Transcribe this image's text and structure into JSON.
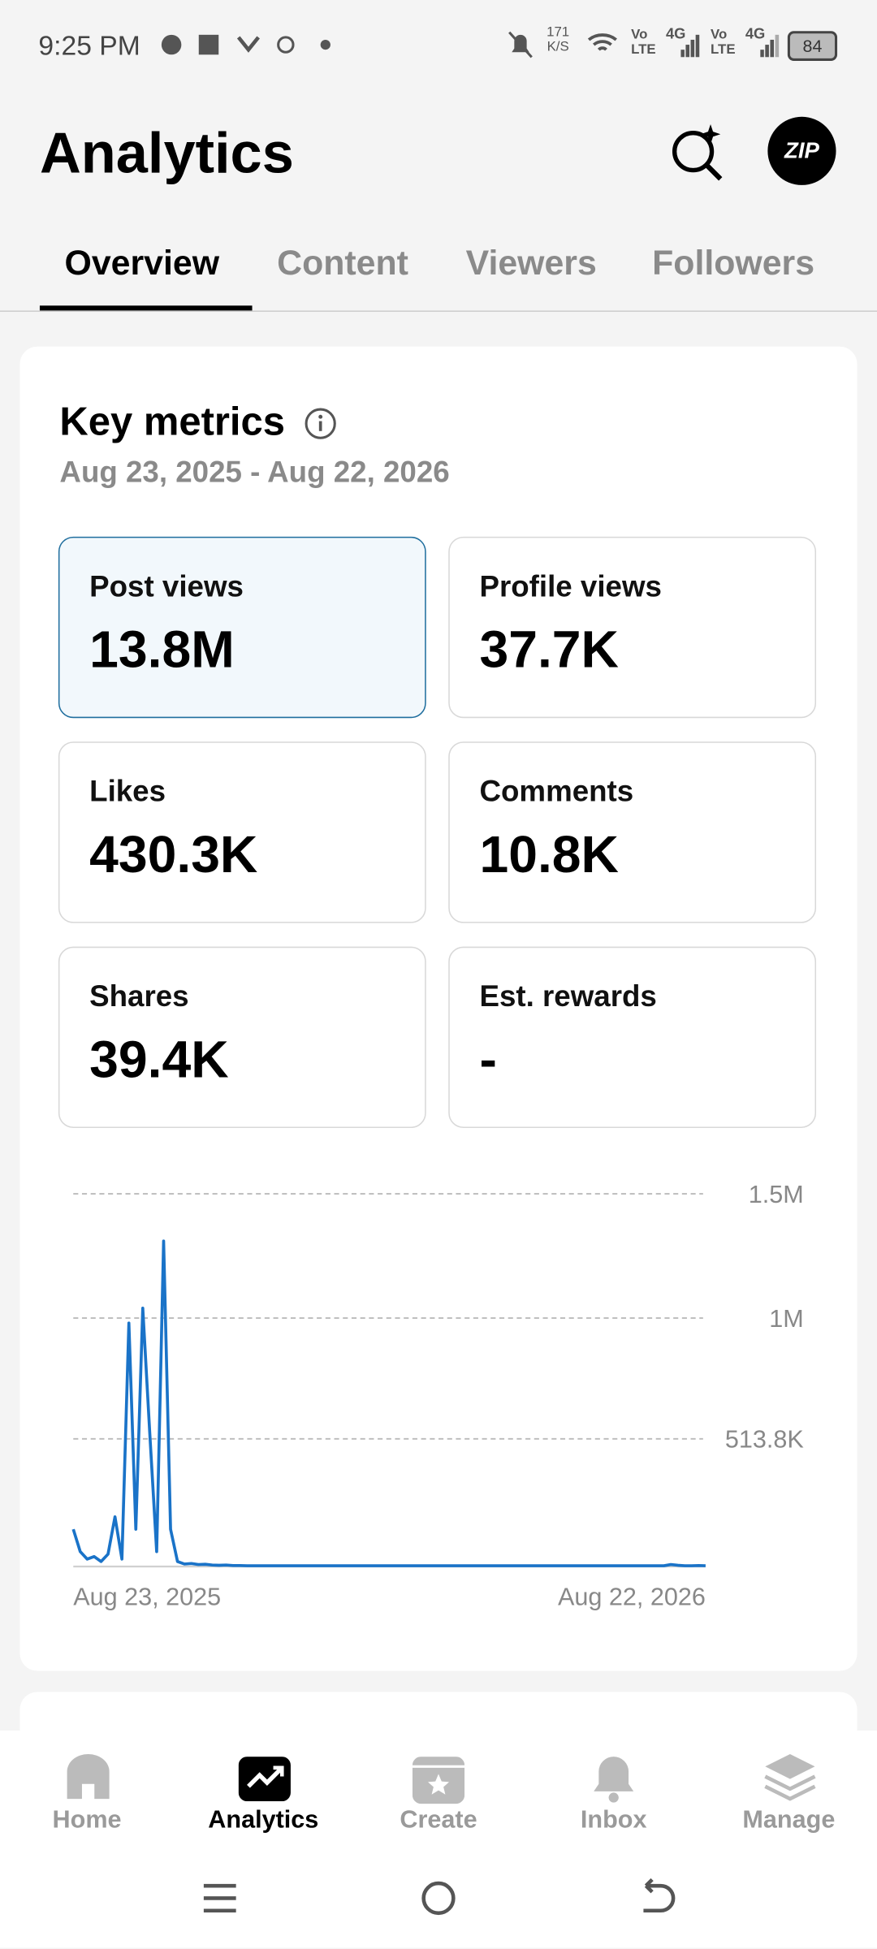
{
  "status_bar": {
    "time": "9:25 PM",
    "speed": "171",
    "speed_unit": "K/S",
    "sim1": {
      "top": "Vo",
      "bottom": "LTE",
      "net": "4G"
    },
    "sim2": {
      "top": "Vo",
      "bottom": "LTE",
      "net": "4G"
    },
    "battery": "84"
  },
  "header": {
    "title": "Analytics",
    "avatar": "ZIP"
  },
  "tabs": [
    "Overview",
    "Content",
    "Viewers",
    "Followers"
  ],
  "card": {
    "title": "Key metrics",
    "date_range": "Aug 23, 2025 - Aug 22, 2026",
    "metrics": [
      {
        "label": "Post views",
        "value": "13.8M"
      },
      {
        "label": "Profile views",
        "value": "37.7K"
      },
      {
        "label": "Likes",
        "value": "430.3K"
      },
      {
        "label": "Comments",
        "value": "10.8K"
      },
      {
        "label": "Shares",
        "value": "39.4K"
      },
      {
        "label": "Est. rewards",
        "value": "-"
      }
    ]
  },
  "chart_data": {
    "type": "line",
    "color": "#1a73c8",
    "categories": [
      "Aug 23, 2025",
      null,
      null,
      null,
      null,
      null,
      null,
      null,
      null,
      null,
      null,
      null,
      null,
      null,
      null,
      null,
      null,
      null,
      null,
      null,
      null,
      null,
      null,
      null,
      null,
      null,
      null,
      null,
      null,
      null,
      null,
      null,
      null,
      null,
      null,
      null,
      null,
      null,
      null,
      null,
      null,
      null,
      null,
      null,
      null,
      null,
      null,
      null,
      null,
      null,
      null,
      null,
      null,
      null,
      null,
      null,
      null,
      null,
      null,
      null,
      null,
      null,
      null,
      null,
      null,
      null,
      null,
      null,
      null,
      null,
      null,
      null,
      null,
      null,
      null,
      null,
      null,
      null,
      null,
      null,
      null,
      null,
      null,
      null,
      null,
      null,
      null,
      null,
      null,
      null,
      null,
      "Aug 22, 2026"
    ],
    "values": [
      150000,
      60000,
      30000,
      40000,
      20000,
      50000,
      200000,
      30000,
      980000,
      150000,
      1040000,
      540000,
      60000,
      1310000,
      150000,
      20000,
      10000,
      12000,
      8000,
      9000,
      6000,
      5000,
      6000,
      4000,
      4000,
      3000,
      3000,
      3000,
      3000,
      3000,
      3000,
      3000,
      3000,
      3000,
      3000,
      3000,
      3000,
      3000,
      3000,
      3000,
      3000,
      3000,
      3000,
      3000,
      3000,
      3000,
      3000,
      3000,
      3000,
      3000,
      3000,
      3000,
      3000,
      3000,
      3000,
      3000,
      3000,
      3000,
      3000,
      3000,
      3000,
      3000,
      3000,
      3000,
      3000,
      3000,
      3000,
      3000,
      3000,
      3000,
      3000,
      3000,
      3000,
      3000,
      3000,
      3000,
      3000,
      3000,
      3000,
      3000,
      3000,
      3000,
      3000,
      3000,
      3000,
      3000,
      8000,
      5000,
      3000,
      3000,
      4000,
      3000
    ],
    "ylim": [
      0,
      1500000
    ],
    "yticks": [
      {
        "value": 1500000,
        "label": "1.5M"
      },
      {
        "value": 1000000,
        "label": "1M"
      },
      {
        "value": 513800,
        "label": "513.8K"
      }
    ],
    "grid": true
  },
  "nav": [
    "Home",
    "Analytics",
    "Create",
    "Inbox",
    "Manage"
  ]
}
